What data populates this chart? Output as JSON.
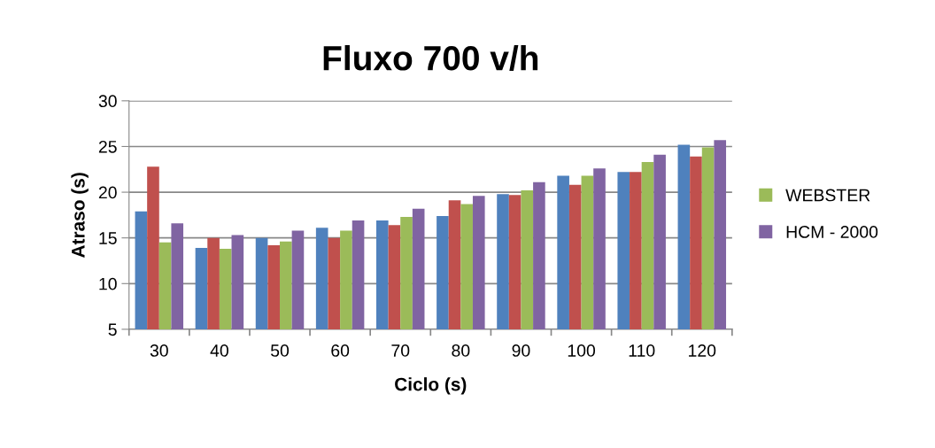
{
  "chart_data": {
    "type": "bar",
    "title": "Fluxo 700 v/h",
    "xlabel": "Ciclo (s)",
    "ylabel": "Atraso (s)",
    "categories": [
      "30",
      "40",
      "50",
      "60",
      "70",
      "80",
      "90",
      "100",
      "110",
      "120"
    ],
    "series": [
      {
        "color": "#4f81bd",
        "values": [
          17.9,
          13.9,
          15.0,
          16.1,
          16.9,
          17.4,
          19.8,
          21.8,
          22.2,
          25.2
        ]
      },
      {
        "color": "#c0504d",
        "values": [
          22.8,
          15.0,
          14.2,
          15.0,
          16.4,
          19.1,
          19.7,
          20.8,
          22.2,
          23.9
        ]
      },
      {
        "name": "WEBSTER",
        "color": "#9bbb59",
        "values": [
          14.5,
          13.8,
          14.6,
          15.8,
          17.3,
          18.7,
          20.2,
          21.8,
          23.3,
          24.9
        ]
      },
      {
        "name": "HCM - 2000",
        "color": "#8064a2",
        "values": [
          16.6,
          15.3,
          15.8,
          16.9,
          18.2,
          19.6,
          21.1,
          22.6,
          24.1,
          25.7
        ]
      }
    ],
    "ylim": [
      5,
      30
    ],
    "yticks": [
      5,
      10,
      15,
      20,
      25,
      30
    ],
    "grid": "y",
    "legend": "right"
  }
}
